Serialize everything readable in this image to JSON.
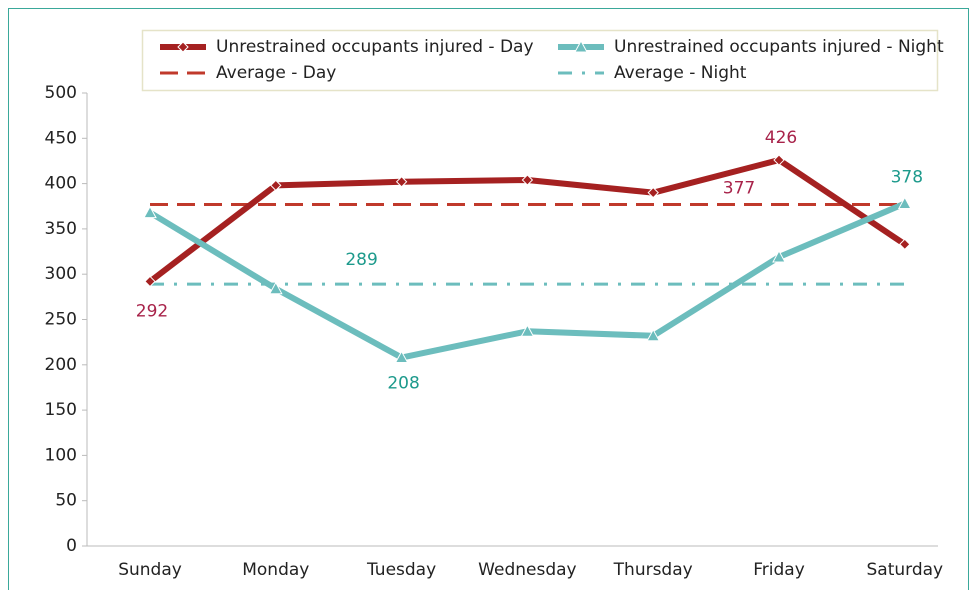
{
  "chart_data": {
    "type": "line",
    "categories": [
      "Sunday",
      "Monday",
      "Tuesday",
      "Wednesday",
      "Thursday",
      "Friday",
      "Saturday"
    ],
    "series": [
      {
        "name": "Unrestrained occupants injured - Day",
        "color": "#a52121",
        "label_color": "#a8234a",
        "style": "solid",
        "marker": "diamond",
        "values": [
          292,
          398,
          402,
          404,
          390,
          426,
          333
        ]
      },
      {
        "name": "Unrestrained occupants injured - Night",
        "color": "#6cbdbd",
        "label_color": "#1d9a8c",
        "style": "solid",
        "marker": "triangle",
        "values": [
          368,
          284,
          208,
          237,
          232,
          319,
          378
        ]
      },
      {
        "name": "Average - Day",
        "color": "#c0392b",
        "label_color": "#a8234a",
        "style": "dashed",
        "values": [
          377,
          377,
          377,
          377,
          377,
          377,
          377
        ]
      },
      {
        "name": "Average - Night",
        "color": "#6cbdbd",
        "label_color": "#1d9a8c",
        "style": "dashdot",
        "values": [
          289,
          289,
          289,
          289,
          289,
          289,
          289
        ]
      }
    ],
    "ylim": [
      0,
      500
    ],
    "yticks": [
      0,
      50,
      100,
      150,
      200,
      250,
      300,
      350,
      400,
      450,
      500
    ],
    "grid": false,
    "legend": "top"
  }
}
